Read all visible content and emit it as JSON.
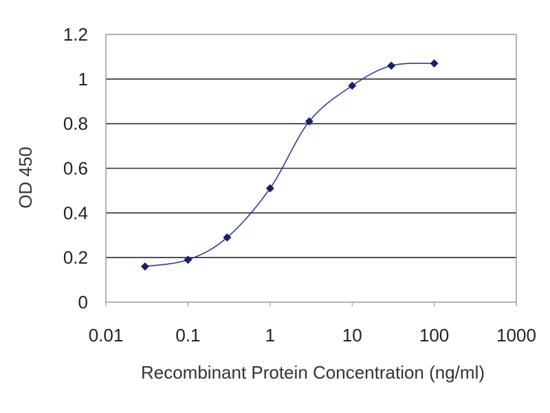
{
  "chart_data": {
    "type": "line",
    "xlabel": "Recombinant Protein Concentration (ng/ml)",
    "ylabel": "OD 450",
    "x_scale": "log",
    "xlim": [
      0.01,
      1000
    ],
    "ylim": [
      0,
      1.2
    ],
    "x_ticks": [
      "0.01",
      "0.1",
      "1",
      "10",
      "100",
      "1000"
    ],
    "y_ticks": [
      "0",
      "0.2",
      "0.4",
      "0.6",
      "0.8",
      "1",
      "1.2"
    ],
    "grid": "horizontal",
    "legend": "none",
    "series": [
      {
        "color": "#2a3a9a",
        "marker_color": "#1a1f6e",
        "points": [
          {
            "x": 0.03,
            "y": 0.16
          },
          {
            "x": 0.1,
            "y": 0.19
          },
          {
            "x": 0.3,
            "y": 0.29
          },
          {
            "x": 1,
            "y": 0.51
          },
          {
            "x": 3,
            "y": 0.81
          },
          {
            "x": 10,
            "y": 0.97
          },
          {
            "x": 30,
            "y": 1.06
          },
          {
            "x": 100,
            "y": 1.07
          }
        ]
      }
    ]
  }
}
